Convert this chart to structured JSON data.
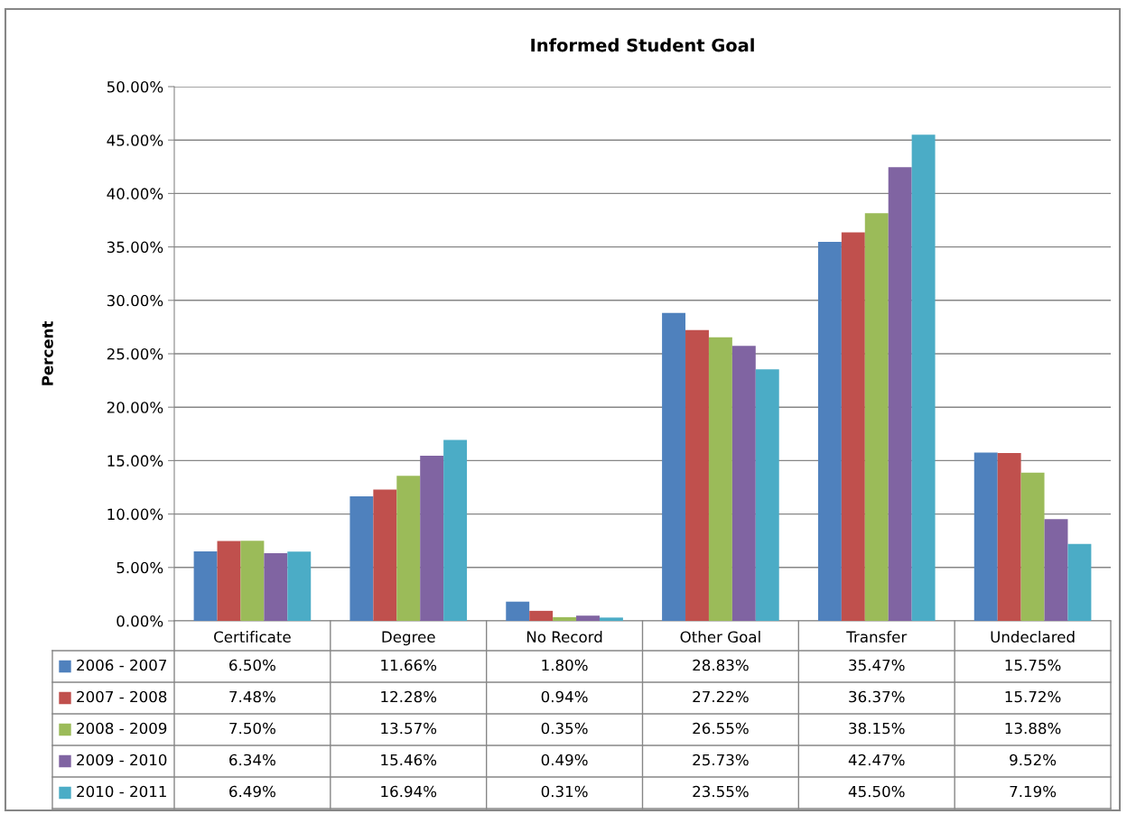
{
  "chart_data": {
    "type": "bar",
    "title": "Informed Student Goal",
    "ylabel": "Percent",
    "categories": [
      "Certificate",
      "Degree",
      "No Record",
      "Other Goal",
      "Transfer",
      "Undeclared"
    ],
    "series": [
      {
        "name": "2006 - 2007",
        "color": "#4f81bd",
        "values": [
          6.5,
          11.66,
          1.8,
          28.83,
          35.47,
          15.75
        ],
        "value_labels": [
          "6.50%",
          "11.66%",
          "1.80%",
          "28.83%",
          "35.47%",
          "15.75%"
        ]
      },
      {
        "name": "2007 - 2008",
        "color": "#c0504d",
        "values": [
          7.48,
          12.28,
          0.94,
          27.22,
          36.37,
          15.72
        ],
        "value_labels": [
          "7.48%",
          "12.28%",
          "0.94%",
          "27.22%",
          "36.37%",
          "15.72%"
        ]
      },
      {
        "name": "2008 - 2009",
        "color": "#9bbb59",
        "values": [
          7.5,
          13.57,
          0.35,
          26.55,
          38.15,
          13.88
        ],
        "value_labels": [
          "7.50%",
          "13.57%",
          "0.35%",
          "26.55%",
          "38.15%",
          "13.88%"
        ]
      },
      {
        "name": "2009 - 2010",
        "color": "#8064a2",
        "values": [
          6.34,
          15.46,
          0.49,
          25.73,
          42.47,
          9.52
        ],
        "value_labels": [
          "6.34%",
          "15.46%",
          "0.49%",
          "25.73%",
          "42.47%",
          "9.52%"
        ]
      },
      {
        "name": "2010 - 2011",
        "color": "#4bacc6",
        "values": [
          6.49,
          16.94,
          0.31,
          23.55,
          45.5,
          7.19
        ],
        "value_labels": [
          "6.49%",
          "16.94%",
          "0.31%",
          "23.55%",
          "45.50%",
          "7.19%"
        ]
      }
    ],
    "ylim": [
      0,
      50
    ],
    "yticks": [
      {
        "value": 0,
        "label": "0.00%"
      },
      {
        "value": 5,
        "label": "5.00%"
      },
      {
        "value": 10,
        "label": "10.00%"
      },
      {
        "value": 15,
        "label": "15.00%"
      },
      {
        "value": 20,
        "label": "20.00%"
      },
      {
        "value": 25,
        "label": "25.00%"
      },
      {
        "value": 30,
        "label": "30.00%"
      },
      {
        "value": 35,
        "label": "35.00%"
      },
      {
        "value": 40,
        "label": "40.00%"
      },
      {
        "value": 45,
        "label": "45.00%"
      },
      {
        "value": 50,
        "label": "50.00%"
      }
    ],
    "grid": "y",
    "legend": "bottom"
  }
}
